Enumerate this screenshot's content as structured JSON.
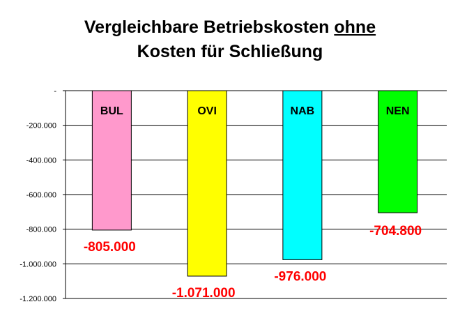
{
  "title": {
    "line1_pre": "Vergleichbare Betriebskosten ",
    "line1_underlined": "ohne",
    "line2": "Kosten für Schließung"
  },
  "chart_data": {
    "type": "bar",
    "title": "Vergleichbare Betriebskosten ohne Kosten für Schließung",
    "categories": [
      "BUL",
      "OVI",
      "NAB",
      "NEN"
    ],
    "values": [
      -805000,
      -1071000,
      -976000,
      -704800
    ],
    "value_labels": [
      "-805.000",
      "-1.071.000",
      "-976.000",
      "-704.800"
    ],
    "colors": [
      "#ff99cc",
      "#ffff00",
      "#00ffff",
      "#00ff00"
    ],
    "label_color": "#ff0000",
    "ylim": [
      -1200000,
      0
    ],
    "yticks": [
      0,
      -200000,
      -400000,
      -600000,
      -800000,
      -1000000,
      -1200000
    ],
    "ytick_labels": [
      "-",
      "-200.000",
      "-400.000",
      "-600.000",
      "-800.000",
      "-1.000.000",
      "-1.200.000"
    ],
    "grid": true,
    "legend": "none",
    "xlabel": "",
    "ylabel": ""
  }
}
